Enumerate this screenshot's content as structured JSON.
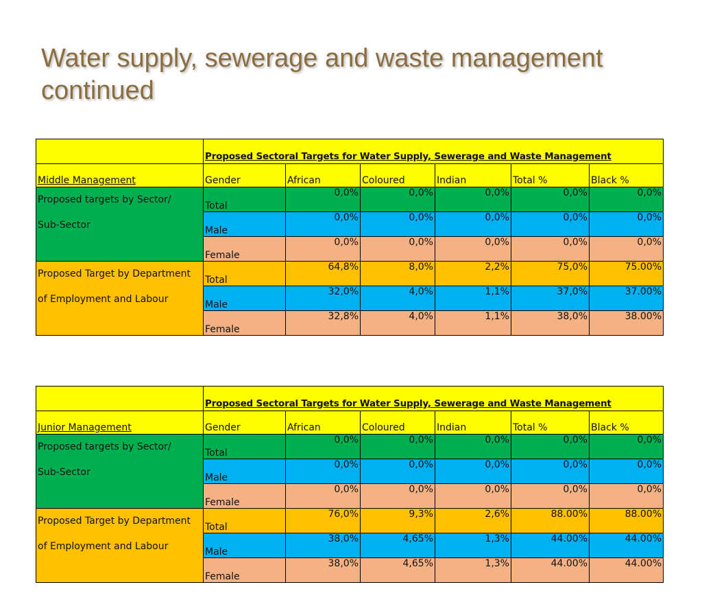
{
  "slide": {
    "title_line1": "Water supply, sewerage and waste management",
    "title_line2": "continued"
  },
  "colors": {
    "green": "#00b050",
    "blue": "#00b0f0",
    "peach": "#f4b183",
    "orange": "#ffc000",
    "yellow": "#ffff00",
    "title": "#8b6d3f"
  },
  "tables": [
    {
      "caption": "Proposed Sectoral Targets for Water Supply, Sewerage and Waste Management",
      "level": "Middle Management",
      "headers": [
        "Gender",
        "African",
        "Coloured",
        "Indian",
        "Total %",
        "Black %"
      ],
      "groups": [
        {
          "label_line1": "Proposed targets by Sector/",
          "label_line2": "Sub-Sector",
          "rows": [
            {
              "gender": "Total",
              "values": [
                "0,0%",
                "0,0%",
                "0,0%",
                "0,0%",
                "0,0%"
              ]
            },
            {
              "gender": "Male",
              "values": [
                "0,0%",
                "0,0%",
                "0,0%",
                "0,0%",
                "0,0%"
              ]
            },
            {
              "gender": "Female",
              "values": [
                "0,0%",
                "0,0%",
                "0,0%",
                "0,0%",
                "0,0%"
              ]
            }
          ]
        },
        {
          "label_line1": "Proposed Target by Department",
          "label_line2": "of Employment and Labour",
          "rows": [
            {
              "gender": "Total",
              "values": [
                "64,8%",
                "8,0%",
                "2,2%",
                "75,0%",
                "75.00%"
              ]
            },
            {
              "gender": "Male",
              "values": [
                "32,0%",
                "4,0%",
                "1,1%",
                "37,0%",
                "37.00%"
              ]
            },
            {
              "gender": "Female",
              "values": [
                "32,8%",
                "4,0%",
                "1,1%",
                "38,0%",
                "38.00%"
              ]
            }
          ]
        }
      ]
    },
    {
      "caption": "Proposed Sectoral Targets for Water Supply, Sewerage and Waste Management",
      "level": "Junior Management",
      "headers": [
        "Gender",
        "African",
        "Coloured",
        "Indian",
        "Total %",
        "Black %"
      ],
      "groups": [
        {
          "label_line1": "Proposed targets by Sector/",
          "label_line2": "Sub-Sector",
          "rows": [
            {
              "gender": "Total",
              "values": [
                "0,0%",
                "0,0%",
                "0,0%",
                "0,0%",
                "0,0%"
              ]
            },
            {
              "gender": "Male",
              "values": [
                "0,0%",
                "0,0%",
                "0,0%",
                "0,0%",
                "0,0%"
              ]
            },
            {
              "gender": "Female",
              "values": [
                "0,0%",
                "0,0%",
                "0,0%",
                "0,0%",
                "0,0%"
              ]
            }
          ]
        },
        {
          "label_line1": "Proposed Target by Department",
          "label_line2": "of Employment and Labour",
          "rows": [
            {
              "gender": "Total",
              "values": [
                "76,0%",
                "9,3%",
                "2,6%",
                "88.00%",
                "88.00%"
              ]
            },
            {
              "gender": "Male",
              "values": [
                "38,0%",
                "4,65%",
                "1,3%",
                "44.00%",
                "44.00%"
              ]
            },
            {
              "gender": "Female",
              "values": [
                "38,0%",
                "4,65%",
                "1,3%",
                "44.00%",
                "44.00%"
              ]
            }
          ]
        }
      ]
    }
  ]
}
